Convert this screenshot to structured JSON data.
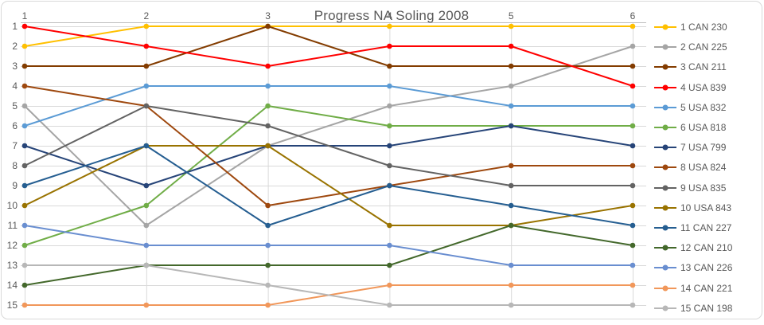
{
  "window": {
    "background": "#FFFFFF",
    "border_color": "#D9D9D9"
  },
  "chart_data": {
    "type": "line",
    "subtype": "bump-rank-progress",
    "title": "Progress NA Soling 2008",
    "title_color": "#595959",
    "x_categories": [
      "1",
      "2",
      "3",
      "4",
      "5",
      "6"
    ],
    "x_axis_position": "top",
    "y_axis": {
      "reversed": true,
      "min": 1,
      "max": 15,
      "tick_labels": [
        "1",
        "2",
        "3",
        "4",
        "5",
        "6",
        "7",
        "8",
        "9",
        "10",
        "11",
        "12",
        "13",
        "14",
        "15"
      ]
    },
    "grid": true,
    "gridline_color": "#D9D9D9",
    "axis_line_color": "#BFBFBF",
    "axis_label_color": "#595959",
    "legend_position": "right",
    "series": [
      {
        "name": "1 CAN 230",
        "color": "#FFC000",
        "positions": [
          2,
          1,
          1,
          1,
          1,
          1
        ]
      },
      {
        "name": "2 CAN 225",
        "color": "#A5A5A5",
        "positions": [
          5,
          11,
          7,
          5,
          4,
          2
        ]
      },
      {
        "name": "3 CAN 211",
        "color": "#833C00",
        "positions": [
          3,
          3,
          1,
          3,
          3,
          3
        ]
      },
      {
        "name": "4 USA 839",
        "color": "#FF0000",
        "positions": [
          1,
          2,
          3,
          2,
          2,
          4
        ]
      },
      {
        "name": "5 USA 832",
        "color": "#5B9BD5",
        "positions": [
          6,
          4,
          4,
          4,
          5,
          5
        ]
      },
      {
        "name": "6 USA 818",
        "color": "#70AD47",
        "positions": [
          12,
          10,
          5,
          6,
          6,
          6
        ]
      },
      {
        "name": "7 USA 799",
        "color": "#264478",
        "positions": [
          7,
          9,
          7,
          7,
          6,
          7
        ]
      },
      {
        "name": "8 USA 824",
        "color": "#9E480E",
        "positions": [
          4,
          5,
          10,
          9,
          8,
          8
        ]
      },
      {
        "name": "9 USA 835",
        "color": "#636363",
        "positions": [
          8,
          5,
          6,
          8,
          9,
          9
        ]
      },
      {
        "name": "10 USA 843",
        "color": "#997300",
        "positions": [
          10,
          7,
          7,
          11,
          11,
          10
        ]
      },
      {
        "name": "11 CAN 227",
        "color": "#255E91",
        "positions": [
          9,
          7,
          11,
          9,
          10,
          11
        ]
      },
      {
        "name": "12 CAN 210",
        "color": "#43682B",
        "positions": [
          14,
          13,
          13,
          13,
          11,
          12
        ]
      },
      {
        "name": "13 CAN 226",
        "color": "#698ED0",
        "positions": [
          11,
          12,
          12,
          12,
          13,
          13
        ]
      },
      {
        "name": "14 CAN 221",
        "color": "#F1975A",
        "positions": [
          15,
          15,
          15,
          14,
          14,
          14
        ]
      },
      {
        "name": "15 CAN 198",
        "color": "#B7B7B7",
        "positions": [
          13,
          13,
          14,
          15,
          15,
          15
        ]
      }
    ]
  }
}
